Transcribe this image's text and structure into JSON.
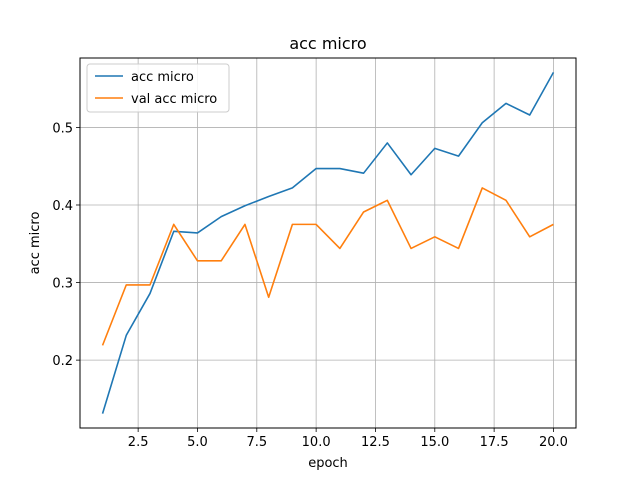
{
  "chart_data": {
    "type": "line",
    "title": "acc micro",
    "xlabel": "epoch",
    "ylabel": "acc micro",
    "xlim": [
      0.05,
      20.95
    ],
    "ylim": [
      0.1125,
      0.5895
    ],
    "xticks": [
      2.5,
      5.0,
      7.5,
      10.0,
      12.5,
      15.0,
      17.5,
      20.0
    ],
    "xtick_labels": [
      "2.5",
      "5.0",
      "7.5",
      "10.0",
      "12.5",
      "15.0",
      "17.5",
      "20.0"
    ],
    "yticks": [
      0.2,
      0.3,
      0.4,
      0.5
    ],
    "ytick_labels": [
      "0.2",
      "0.3",
      "0.4",
      "0.5"
    ],
    "grid": true,
    "legend_position": "top-left",
    "x": [
      1,
      2,
      3,
      4,
      5,
      6,
      7,
      8,
      9,
      10,
      11,
      12,
      13,
      14,
      15,
      16,
      17,
      18,
      19,
      20
    ],
    "series": [
      {
        "name": "acc micro",
        "color": "#1f77b4",
        "values": [
          0.131,
          0.232,
          0.286,
          0.366,
          0.364,
          0.385,
          0.399,
          0.411,
          0.422,
          0.447,
          0.447,
          0.441,
          0.48,
          0.439,
          0.473,
          0.463,
          0.506,
          0.531,
          0.516,
          0.571
        ]
      },
      {
        "name": "val acc micro",
        "color": "#ff7f0e",
        "values": [
          0.219,
          0.297,
          0.297,
          0.375,
          0.328,
          0.328,
          0.375,
          0.281,
          0.375,
          0.375,
          0.344,
          0.391,
          0.406,
          0.344,
          0.359,
          0.344,
          0.422,
          0.406,
          0.359,
          0.375
        ]
      }
    ]
  }
}
